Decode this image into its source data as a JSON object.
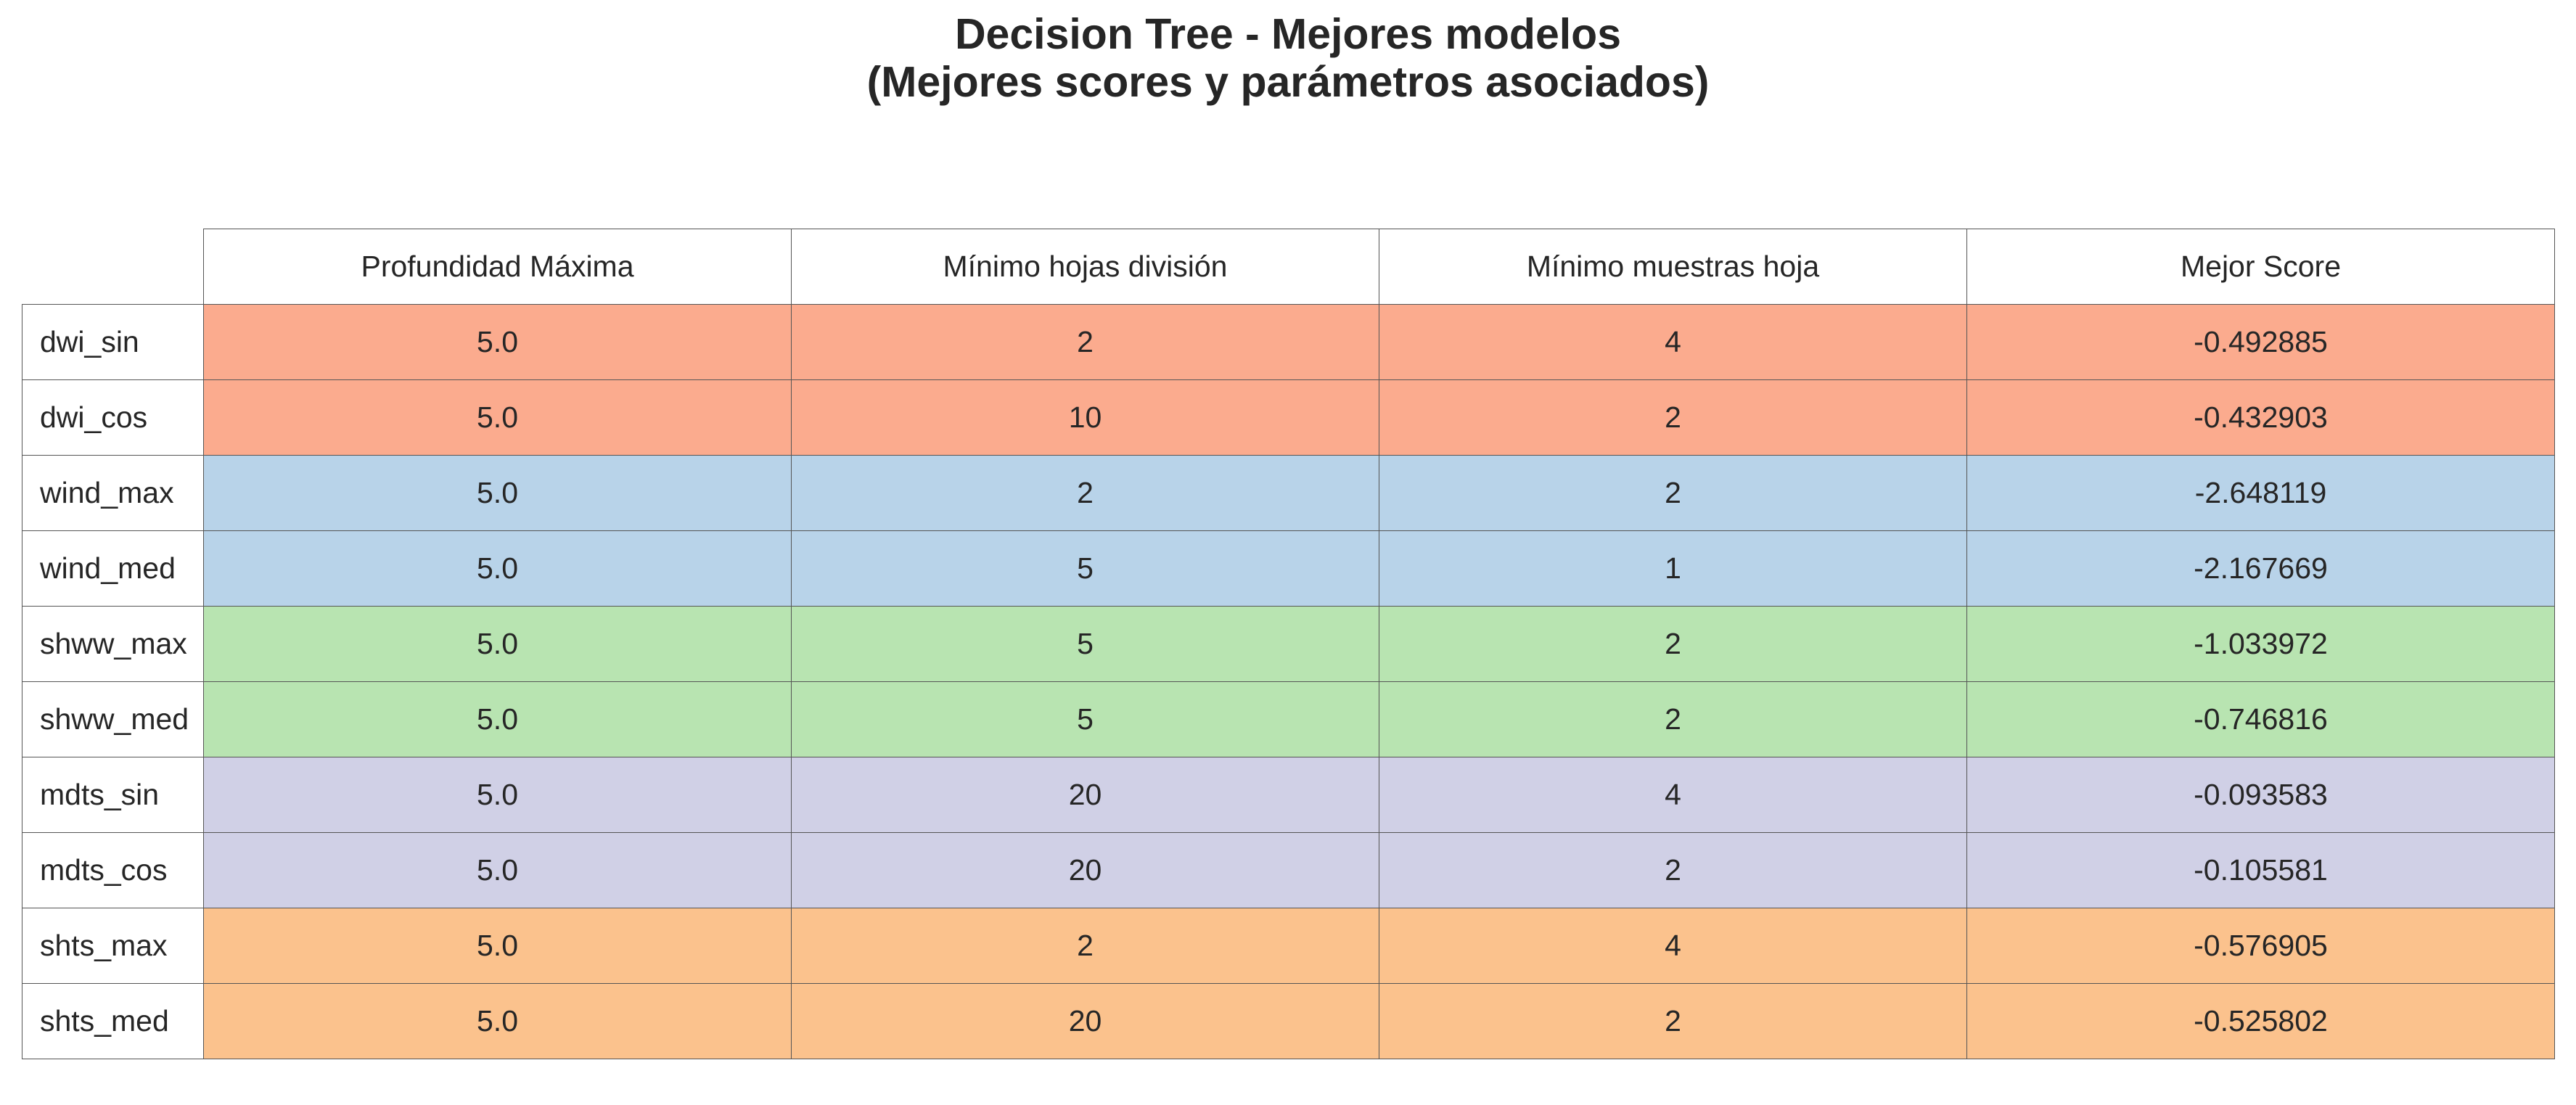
{
  "chart_data": {
    "type": "table",
    "title": "Decision Tree - Mejores modelos",
    "subtitle": "(Mejores scores y parámetros asociados)",
    "columns": [
      "Profundidad Máxima",
      "Mínimo hojas división",
      "Mínimo muestras hoja",
      "Mejor Score"
    ],
    "rows": [
      {
        "label": "dwi_sin",
        "values": [
          "5.0",
          "2",
          "4",
          "-0.492885"
        ],
        "color": "#fbab8e"
      },
      {
        "label": "dwi_cos",
        "values": [
          "5.0",
          "10",
          "2",
          "-0.432903"
        ],
        "color": "#fbab8e"
      },
      {
        "label": "wind_max",
        "values": [
          "5.0",
          "2",
          "2",
          "-2.648119"
        ],
        "color": "#b8d3e9"
      },
      {
        "label": "wind_med",
        "values": [
          "5.0",
          "5",
          "1",
          "-2.167669"
        ],
        "color": "#b8d3e9"
      },
      {
        "label": "shww_max",
        "values": [
          "5.0",
          "5",
          "2",
          "-1.033972"
        ],
        "color": "#b8e4b1"
      },
      {
        "label": "shww_med",
        "values": [
          "5.0",
          "5",
          "2",
          "-0.746816"
        ],
        "color": "#b8e4b1"
      },
      {
        "label": "mdts_sin",
        "values": [
          "5.0",
          "20",
          "4",
          "-0.093583"
        ],
        "color": "#d0d0e6"
      },
      {
        "label": "mdts_cos",
        "values": [
          "5.0",
          "20",
          "2",
          "-0.105581"
        ],
        "color": "#d0d0e6"
      },
      {
        "label": "shts_max",
        "values": [
          "5.0",
          "2",
          "4",
          "-0.576905"
        ],
        "color": "#fbc28d"
      },
      {
        "label": "shts_med",
        "values": [
          "5.0",
          "20",
          "2",
          "-0.525802"
        ],
        "color": "#fbc28d"
      }
    ]
  }
}
